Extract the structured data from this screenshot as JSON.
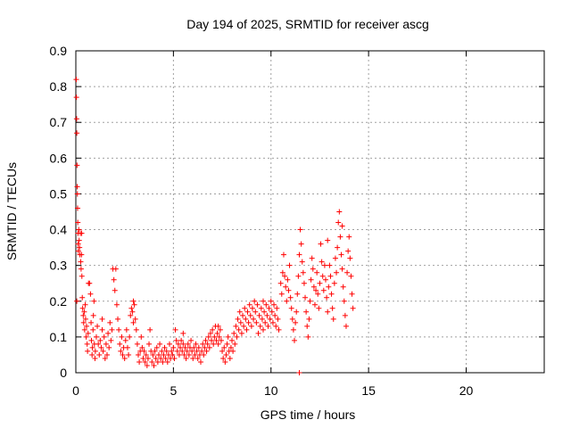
{
  "chart_data": {
    "type": "scatter",
    "title": "Day 194 of 2025, SRMTID for receiver ascg",
    "xlabel": "GPS time / hours",
    "ylabel": "SRMTID / TECUs",
    "xlim": [
      0,
      24
    ],
    "ylim": [
      0,
      0.9
    ],
    "xticks": [
      0,
      5,
      10,
      15,
      20
    ],
    "xtick_labels": [
      "0",
      "5",
      "10",
      "15",
      "20"
    ],
    "yticks": [
      0,
      0.1,
      0.2,
      0.3,
      0.4,
      0.5,
      0.6,
      0.7,
      0.8,
      0.9
    ],
    "ytick_labels": [
      "0",
      "0.1",
      "0.2",
      "0.3",
      "0.4",
      "0.5",
      "0.6",
      "0.7",
      "0.8",
      "0.9"
    ],
    "grid": true,
    "marker": "plus",
    "color": "#ff0000",
    "points": [
      [
        0.02,
        0.82
      ],
      [
        0.03,
        0.77
      ],
      [
        0.04,
        0.71
      ],
      [
        0.05,
        0.67
      ],
      [
        0.06,
        0.58
      ],
      [
        0.07,
        0.52
      ],
      [
        0.08,
        0.5
      ],
      [
        0.09,
        0.46
      ],
      [
        0.1,
        0.42
      ],
      [
        0.11,
        0.39
      ],
      [
        0.12,
        0.36
      ],
      [
        0.13,
        0.34
      ],
      [
        0.15,
        0.4
      ],
      [
        0.17,
        0.37
      ],
      [
        0.19,
        0.35
      ],
      [
        0.21,
        0.33
      ],
      [
        0.23,
        0.39
      ],
      [
        0.25,
        0.31
      ],
      [
        0.27,
        0.29
      ],
      [
        0.29,
        0.33
      ],
      [
        0.31,
        0.27
      ],
      [
        0.33,
        0.21
      ],
      [
        0.35,
        0.18
      ],
      [
        0.38,
        0.16
      ],
      [
        0.4,
        0.14
      ],
      [
        0.43,
        0.17
      ],
      [
        0.45,
        0.12
      ],
      [
        0.48,
        0.19
      ],
      [
        0.5,
        0.15
      ],
      [
        0.53,
        0.1
      ],
      [
        0.55,
        0.13
      ],
      [
        0.58,
        0.08
      ],
      [
        0.6,
        0.06
      ],
      [
        0.63,
        0.11
      ],
      [
        0.65,
        0.25
      ],
      [
        0.7,
        0.25
      ],
      [
        0.75,
        0.22
      ],
      [
        0.78,
        0.14
      ],
      [
        0.8,
        0.09
      ],
      [
        0.83,
        0.05
      ],
      [
        0.85,
        0.07
      ],
      [
        0.88,
        0.12
      ],
      [
        0.9,
        0.16
      ],
      [
        0.93,
        0.2
      ],
      [
        0.95,
        0.08
      ],
      [
        0.98,
        0.04
      ],
      [
        1.0,
        0.06
      ],
      [
        1.05,
        0.1
      ],
      [
        1.1,
        0.13
      ],
      [
        1.15,
        0.08
      ],
      [
        1.2,
        0.05
      ],
      [
        1.25,
        0.09
      ],
      [
        1.3,
        0.07
      ],
      [
        1.35,
        0.12
      ],
      [
        1.4,
        0.06
      ],
      [
        1.45,
        0.1
      ],
      [
        1.5,
        0.04
      ],
      [
        1.55,
        0.08
      ],
      [
        1.6,
        0.05
      ],
      [
        1.65,
        0.11
      ],
      [
        1.7,
        0.07
      ],
      [
        1.75,
        0.14
      ],
      [
        1.8,
        0.09
      ],
      [
        1.85,
        0.12
      ],
      [
        1.9,
        0.29
      ],
      [
        1.95,
        0.26
      ],
      [
        2.0,
        0.23
      ],
      [
        2.05,
        0.29
      ],
      [
        2.1,
        0.19
      ],
      [
        2.15,
        0.15
      ],
      [
        2.2,
        0.12
      ],
      [
        2.25,
        0.08
      ],
      [
        2.3,
        0.06
      ],
      [
        2.35,
        0.1
      ],
      [
        2.4,
        0.05
      ],
      [
        2.45,
        0.07
      ],
      [
        2.5,
        0.04
      ],
      [
        2.55,
        0.09
      ],
      [
        2.6,
        0.12
      ],
      [
        2.65,
        0.07
      ],
      [
        2.7,
        0.05
      ],
      [
        2.75,
        0.1
      ],
      [
        2.8,
        0.16
      ],
      [
        2.85,
        0.18
      ],
      [
        2.9,
        0.17
      ],
      [
        2.95,
        0.2
      ],
      [
        3.0,
        0.19
      ],
      [
        3.05,
        0.15
      ],
      [
        3.1,
        0.12
      ],
      [
        3.15,
        0.08
      ],
      [
        3.2,
        0.05
      ],
      [
        3.25,
        0.03
      ],
      [
        3.3,
        0.06
      ],
      [
        3.35,
        0.1
      ],
      [
        3.4,
        0.07
      ],
      [
        3.45,
        0.04
      ],
      [
        3.5,
        0.06
      ],
      [
        3.55,
        0.03
      ],
      [
        3.6,
        0.05
      ],
      [
        3.65,
        0.02
      ],
      [
        3.7,
        0.04
      ],
      [
        3.75,
        0.08
      ],
      [
        3.8,
        0.12
      ],
      [
        3.85,
        0.06
      ],
      [
        3.9,
        0.03
      ],
      [
        3.95,
        0.05
      ],
      [
        4.0,
        0.02
      ],
      [
        4.05,
        0.06
      ],
      [
        4.1,
        0.04
      ],
      [
        4.15,
        0.07
      ],
      [
        4.2,
        0.03
      ],
      [
        4.25,
        0.05
      ],
      [
        4.3,
        0.08
      ],
      [
        4.35,
        0.04
      ],
      [
        4.4,
        0.06
      ],
      [
        4.45,
        0.03
      ],
      [
        4.5,
        0.05
      ],
      [
        4.55,
        0.07
      ],
      [
        4.6,
        0.04
      ],
      [
        4.65,
        0.06
      ],
      [
        4.7,
        0.03
      ],
      [
        4.75,
        0.05
      ],
      [
        4.8,
        0.08
      ],
      [
        4.85,
        0.04
      ],
      [
        4.9,
        0.06
      ],
      [
        4.95,
        0.05
      ],
      [
        5.0,
        0.07
      ],
      [
        5.05,
        0.04
      ],
      [
        5.1,
        0.12
      ],
      [
        5.15,
        0.09
      ],
      [
        5.2,
        0.06
      ],
      [
        5.25,
        0.08
      ],
      [
        5.3,
        0.05
      ],
      [
        5.35,
        0.07
      ],
      [
        5.4,
        0.09
      ],
      [
        5.45,
        0.06
      ],
      [
        5.5,
        0.08
      ],
      [
        5.55,
        0.05
      ],
      [
        5.6,
        0.07
      ],
      [
        5.65,
        0.04
      ],
      [
        5.7,
        0.06
      ],
      [
        5.75,
        0.08
      ],
      [
        5.8,
        0.05
      ],
      [
        5.85,
        0.07
      ],
      [
        5.9,
        0.09
      ],
      [
        5.95,
        0.06
      ],
      [
        6.0,
        0.04
      ],
      [
        6.05,
        0.07
      ],
      [
        6.1,
        0.05
      ],
      [
        6.15,
        0.08
      ],
      [
        6.2,
        0.06
      ],
      [
        6.25,
        0.04
      ],
      [
        6.3,
        0.07
      ],
      [
        6.35,
        0.05
      ],
      [
        6.4,
        0.03
      ],
      [
        6.45,
        0.06
      ],
      [
        6.5,
        0.08
      ],
      [
        6.55,
        0.05
      ],
      [
        6.6,
        0.07
      ],
      [
        6.65,
        0.09
      ],
      [
        6.7,
        0.06
      ],
      [
        6.75,
        0.08
      ],
      [
        6.8,
        0.1
      ],
      [
        6.85,
        0.07
      ],
      [
        6.9,
        0.11
      ],
      [
        6.95,
        0.09
      ],
      [
        7.0,
        0.12
      ],
      [
        7.05,
        0.08
      ],
      [
        7.1,
        0.1
      ],
      [
        7.15,
        0.13
      ],
      [
        7.2,
        0.09
      ],
      [
        7.25,
        0.11
      ],
      [
        7.3,
        0.08
      ],
      [
        7.35,
        0.1
      ],
      [
        7.4,
        0.12
      ],
      [
        7.45,
        0.09
      ],
      [
        7.5,
        0.06
      ],
      [
        7.55,
        0.04
      ],
      [
        7.6,
        0.07
      ],
      [
        7.65,
        0.03
      ],
      [
        7.7,
        0.05
      ],
      [
        7.75,
        0.08
      ],
      [
        7.8,
        0.1
      ],
      [
        7.85,
        0.06
      ],
      [
        7.9,
        0.04
      ],
      [
        7.95,
        0.07
      ],
      [
        8.0,
        0.09
      ],
      [
        8.05,
        0.06
      ],
      [
        8.1,
        0.11
      ],
      [
        8.15,
        0.08
      ],
      [
        8.2,
        0.13
      ],
      [
        8.25,
        0.1
      ],
      [
        8.3,
        0.15
      ],
      [
        8.35,
        0.12
      ],
      [
        8.4,
        0.17
      ],
      [
        8.45,
        0.14
      ],
      [
        8.5,
        0.11
      ],
      [
        8.55,
        0.16
      ],
      [
        8.6,
        0.13
      ],
      [
        8.65,
        0.18
      ],
      [
        8.7,
        0.15
      ],
      [
        8.75,
        0.12
      ],
      [
        8.8,
        0.17
      ],
      [
        8.85,
        0.14
      ],
      [
        8.9,
        0.19
      ],
      [
        8.95,
        0.16
      ],
      [
        9.0,
        0.13
      ],
      [
        9.05,
        0.18
      ],
      [
        9.1,
        0.15
      ],
      [
        9.15,
        0.2
      ],
      [
        9.2,
        0.17
      ],
      [
        9.25,
        0.14
      ],
      [
        9.3,
        0.19
      ],
      [
        9.35,
        0.11
      ],
      [
        9.4,
        0.16
      ],
      [
        9.45,
        0.13
      ],
      [
        9.5,
        0.18
      ],
      [
        9.55,
        0.15
      ],
      [
        9.6,
        0.12
      ],
      [
        9.65,
        0.17
      ],
      [
        9.7,
        0.14
      ],
      [
        9.75,
        0.19
      ],
      [
        9.8,
        0.16
      ],
      [
        9.85,
        0.13
      ],
      [
        9.9,
        0.18
      ],
      [
        9.95,
        0.15
      ],
      [
        10.0,
        0.2
      ],
      [
        10.05,
        0.17
      ],
      [
        10.1,
        0.14
      ],
      [
        10.15,
        0.19
      ],
      [
        10.2,
        0.16
      ],
      [
        10.25,
        0.13
      ],
      [
        10.3,
        0.18
      ],
      [
        10.35,
        0.15
      ],
      [
        10.4,
        0.12
      ],
      [
        10.5,
        0.25
      ],
      [
        10.55,
        0.22
      ],
      [
        10.6,
        0.28
      ],
      [
        10.65,
        0.33
      ],
      [
        10.7,
        0.27
      ],
      [
        10.75,
        0.24
      ],
      [
        10.8,
        0.2
      ],
      [
        10.85,
        0.26
      ],
      [
        10.9,
        0.23
      ],
      [
        10.95,
        0.3
      ],
      [
        11.0,
        0.21
      ],
      [
        11.05,
        0.18
      ],
      [
        11.1,
        0.15
      ],
      [
        11.15,
        0.12
      ],
      [
        11.2,
        0.09
      ],
      [
        11.25,
        0.14
      ],
      [
        11.3,
        0.17
      ],
      [
        11.35,
        0.22
      ],
      [
        11.4,
        0.27
      ],
      [
        11.45,
        0.33
      ],
      [
        11.5,
        0.4
      ],
      [
        11.55,
        0.36
      ],
      [
        11.6,
        0.31
      ],
      [
        11.65,
        0.28
      ],
      [
        11.7,
        0.25
      ],
      [
        11.75,
        0.21
      ],
      [
        11.8,
        0.17
      ],
      [
        11.85,
        0.13
      ],
      [
        11.9,
        0.1
      ],
      [
        11.95,
        0.15
      ],
      [
        12.0,
        0.2
      ],
      [
        12.05,
        0.26
      ],
      [
        12.1,
        0.32
      ],
      [
        12.15,
        0.29
      ],
      [
        12.2,
        0.24
      ],
      [
        12.25,
        0.19
      ],
      [
        12.3,
        0.23
      ],
      [
        12.35,
        0.28
      ],
      [
        12.4,
        0.22
      ],
      [
        12.45,
        0.18
      ],
      [
        12.5,
        0.25
      ],
      [
        12.55,
        0.36
      ],
      [
        12.6,
        0.31
      ],
      [
        12.65,
        0.27
      ],
      [
        12.7,
        0.23
      ],
      [
        12.75,
        0.3
      ],
      [
        12.8,
        0.26
      ],
      [
        12.85,
        0.21
      ],
      [
        12.9,
        0.17
      ],
      [
        12.95,
        0.24
      ],
      [
        13.0,
        0.3
      ],
      [
        13.05,
        0.27
      ],
      [
        13.1,
        0.22
      ],
      [
        13.15,
        0.18
      ],
      [
        13.2,
        0.15
      ],
      [
        13.25,
        0.25
      ],
      [
        13.3,
        0.32
      ],
      [
        13.35,
        0.28
      ],
      [
        13.4,
        0.35
      ],
      [
        13.45,
        0.42
      ],
      [
        13.5,
        0.45
      ],
      [
        13.55,
        0.38
      ],
      [
        13.6,
        0.33
      ],
      [
        13.65,
        0.29
      ],
      [
        13.7,
        0.24
      ],
      [
        13.75,
        0.2
      ],
      [
        13.8,
        0.16
      ],
      [
        13.85,
        0.13
      ],
      [
        13.9,
        0.28
      ],
      [
        13.95,
        0.34
      ],
      [
        14.0,
        0.38
      ],
      [
        14.05,
        0.32
      ],
      [
        14.1,
        0.27
      ],
      [
        14.15,
        0.22
      ],
      [
        14.2,
        0.18
      ],
      [
        11.45,
        0.0
      ],
      [
        0.05,
        0.2
      ],
      [
        0.3,
        0.39
      ],
      [
        1.35,
        0.15
      ],
      [
        2.95,
        0.14
      ],
      [
        5.5,
        0.11
      ],
      [
        7.3,
        0.13
      ],
      [
        9.6,
        0.2
      ],
      [
        12.9,
        0.37
      ],
      [
        13.65,
        0.41
      ]
    ]
  }
}
